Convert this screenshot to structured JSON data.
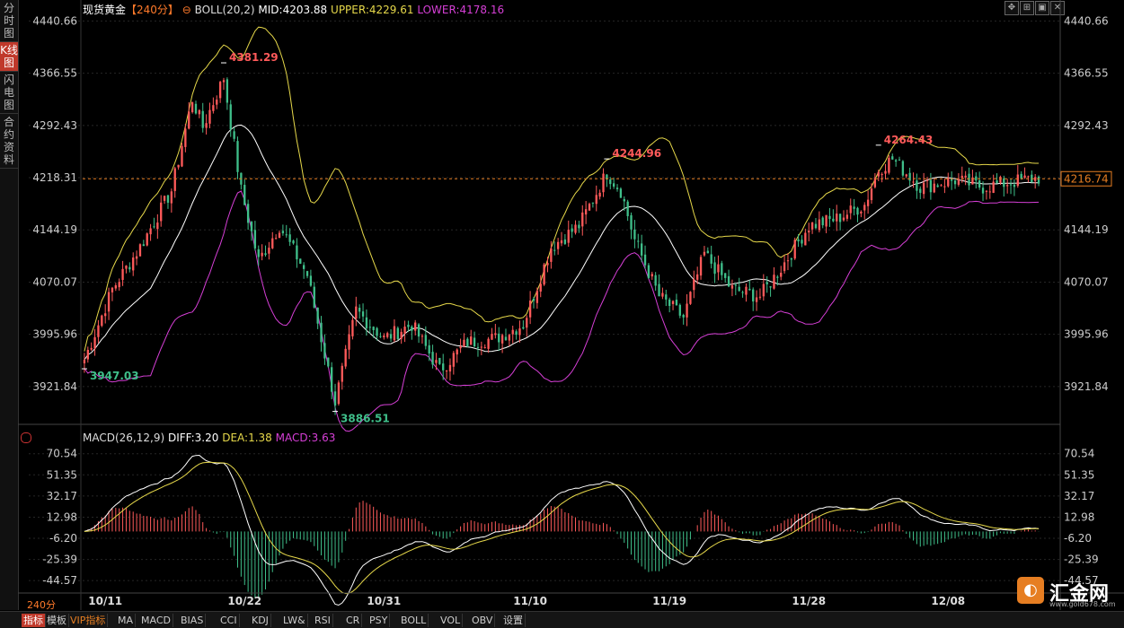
{
  "left_tabs": [
    {
      "label": "分时图",
      "active": false
    },
    {
      "label": "K线图",
      "active": true
    },
    {
      "label": "闪电图",
      "active": false
    },
    {
      "label": "合约资料",
      "active": false
    }
  ],
  "header": {
    "symbol": "现货黄金",
    "period": "【240分】",
    "boll_label": "BOLL(20,2)",
    "mid": "MID:4203.88",
    "upper": "UPPER:4229.61",
    "lower": "LOWER:4178.16"
  },
  "macd_header": {
    "label": "MACD(26,12,9)",
    "diff": "DIFF:3.20",
    "dea": "DEA:1.38",
    "macd": "MACD:3.63"
  },
  "toolbar_icons": [
    "move-icon",
    "zoom-icon",
    "fit-icon",
    "close-icon"
  ],
  "price_axis": [
    "4440.66",
    "4366.55",
    "4292.43",
    "4218.31",
    "4144.19",
    "4070.07",
    "3995.96",
    "3921.84"
  ],
  "macd_axis": [
    "70.54",
    "51.35",
    "32.17",
    "12.98",
    "-6.20",
    "-25.39",
    "-44.57"
  ],
  "current_price": "4216.74",
  "date_labels": [
    "10/11",
    "10/22",
    "10/31",
    "11/10",
    "11/19",
    "11/28",
    "12/08"
  ],
  "annotations": {
    "high1": "4381.29",
    "low1": "3947.03",
    "low2": "3886.51",
    "high2": "4244.96",
    "high3": "4264.43"
  },
  "bottom": {
    "period": "240分",
    "tabs": [
      "指标",
      "模板",
      "VIP指标",
      "MA",
      "MACD",
      "BIAS",
      "CCI",
      "KDJ",
      "LW&",
      "RSI",
      "CR",
      "PSY",
      "BOLL",
      "VOL",
      "OBV",
      "设置"
    ]
  },
  "logo": {
    "text": "汇金网",
    "url": "www.gold678.com"
  },
  "colors": {
    "up": "#ff5a5a",
    "down": "#3fbf8a",
    "mid": "#ffffff",
    "upper": "#e6d84a",
    "lower": "#d63fd6",
    "diff": "#ffffff",
    "dea": "#e6d84a"
  },
  "chart_data": [
    {
      "type": "candlestick",
      "title": "现货黄金 240分",
      "ylim": [
        3900,
        4445
      ],
      "price_anchors": [
        [
          0,
          3960
        ],
        [
          8,
          4060
        ],
        [
          16,
          4120
        ],
        [
          25,
          4200
        ],
        [
          31,
          4330
        ],
        [
          34,
          4290
        ],
        [
          40,
          4360
        ],
        [
          45,
          4200
        ],
        [
          50,
          4100
        ],
        [
          56,
          4150
        ],
        [
          64,
          4080
        ],
        [
          72,
          3900
        ],
        [
          78,
          4030
        ],
        [
          86,
          3990
        ],
        [
          94,
          4010
        ],
        [
          102,
          3945
        ],
        [
          110,
          3985
        ],
        [
          118,
          3990
        ],
        [
          126,
          4010
        ],
        [
          134,
          4120
        ],
        [
          142,
          4150
        ],
        [
          150,
          4225
        ],
        [
          154,
          4200
        ],
        [
          158,
          4130
        ],
        [
          165,
          4050
        ],
        [
          172,
          4020
        ],
        [
          178,
          4110
        ],
        [
          186,
          4060
        ],
        [
          194,
          4050
        ],
        [
          200,
          4090
        ],
        [
          208,
          4150
        ],
        [
          216,
          4160
        ],
        [
          224,
          4180
        ],
        [
          228,
          4230
        ],
        [
          232,
          4245
        ],
        [
          240,
          4205
        ],
        [
          250,
          4215
        ],
        [
          258,
          4205
        ],
        [
          266,
          4212
        ],
        [
          274,
          4218
        ]
      ],
      "bollinger": {
        "period": 20,
        "k": 2,
        "mid": 4203.88,
        "upper": 4229.61,
        "lower": 4178.16
      }
    },
    {
      "type": "macd",
      "title": "MACD(26,12,9)",
      "ylim": [
        -55,
        76
      ],
      "diff": 3.2,
      "dea": 1.38,
      "macd": 3.63
    }
  ]
}
